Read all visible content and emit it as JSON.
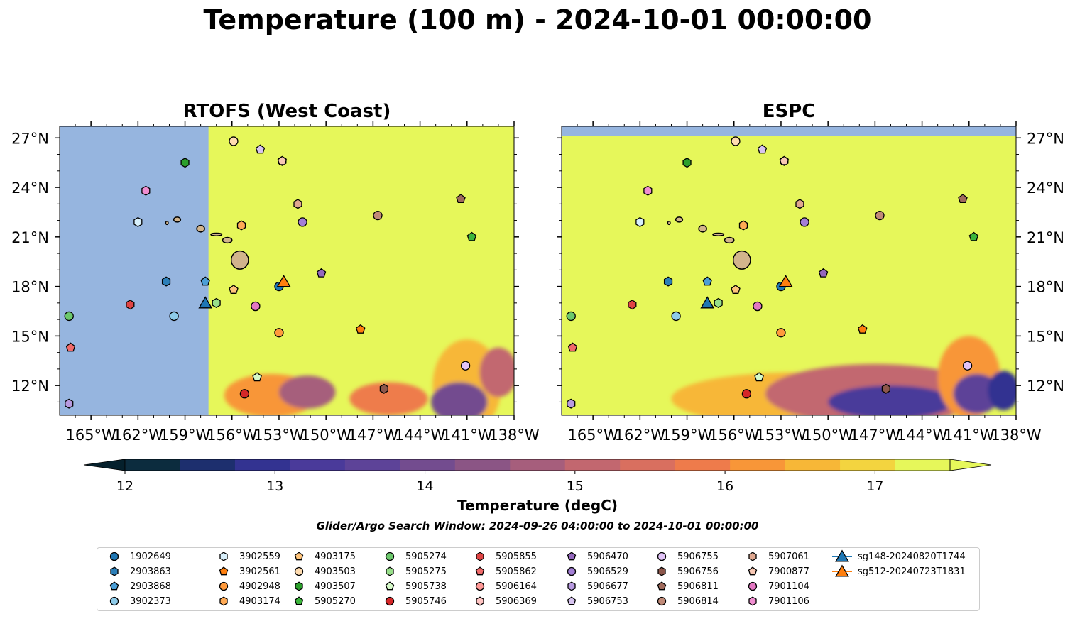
{
  "title": "Temperature (100 m) - 2024-10-01 00:00:00",
  "panels": [
    {
      "title": "RTOFS (West Coast)",
      "model_coverage_west_edge_lon": -157.5
    },
    {
      "title": "ESPC",
      "model_coverage_north_edge_lat": 27.1
    }
  ],
  "map_extent": {
    "lon_min": -167,
    "lon_max": -138,
    "lat_min": 10.2,
    "lat_max": 27.7
  },
  "x_ticks": [
    {
      "lon": -165,
      "label": "165°W"
    },
    {
      "lon": -162,
      "label": "162°W"
    },
    {
      "lon": -159,
      "label": "159°W"
    },
    {
      "lon": -156,
      "label": "156°W"
    },
    {
      "lon": -153,
      "label": "153°W"
    },
    {
      "lon": -150,
      "label": "150°W"
    },
    {
      "lon": -147,
      "label": "147°W"
    },
    {
      "lon": -144,
      "label": "144°W"
    },
    {
      "lon": -141,
      "label": "141°W"
    },
    {
      "lon": -138,
      "label": "138°W"
    }
  ],
  "y_ticks": [
    {
      "lat": 12,
      "label": "12°N"
    },
    {
      "lat": 15,
      "label": "15°N"
    },
    {
      "lat": 18,
      "label": "18°N"
    },
    {
      "lat": 21,
      "label": "21°N"
    },
    {
      "lat": 24,
      "label": "24°N"
    },
    {
      "lat": 27,
      "label": "27°N"
    }
  ],
  "colorbar": {
    "label": "Temperature (degC)",
    "min": 12,
    "max": 17.5,
    "step": 0.5,
    "ticks": [
      "12",
      "13",
      "14",
      "15",
      "16",
      "17"
    ],
    "colors": [
      "#0c2c3e",
      "#1d2f6e",
      "#333391",
      "#4a3a9a",
      "#5d4398",
      "#734c8f",
      "#8b5585",
      "#a65e7c",
      "#c2676f",
      "#d96f5f",
      "#ee7b4b",
      "#f89638",
      "#f7b737",
      "#f3d43f",
      "#e6f75a"
    ],
    "under_color": "#05202c",
    "over_color": "#e6f75a"
  },
  "colors": {
    "no_data": "#96b5df",
    "land": "#d2b48c",
    "warm": "#e6f75a"
  },
  "search_window": "Glider/Argo Search Window: 2024-09-26 04:00:00 to 2024-10-01 00:00:00",
  "legend": [
    {
      "id": "1902649",
      "marker": "circle",
      "color": "#1f77b4"
    },
    {
      "id": "2903863",
      "marker": "hexagon",
      "color": "#2c7fb8"
    },
    {
      "id": "2903868",
      "marker": "pentagon",
      "color": "#4b9ed6"
    },
    {
      "id": "3902373",
      "marker": "circle",
      "color": "#8ecbe9"
    },
    {
      "id": "3902559",
      "marker": "hexagon",
      "color": "#d8f0fc"
    },
    {
      "id": "3902561",
      "marker": "pentagon",
      "color": "#ff7f0e"
    },
    {
      "id": "4902948",
      "marker": "circle",
      "color": "#ff9a3c"
    },
    {
      "id": "4903174",
      "marker": "hexagon",
      "color": "#ffaa55"
    },
    {
      "id": "4903175",
      "marker": "pentagon",
      "color": "#ffc47a"
    },
    {
      "id": "4903503",
      "marker": "circle",
      "color": "#ffdcb0"
    },
    {
      "id": "4903507",
      "marker": "hexagon",
      "color": "#2ca02c"
    },
    {
      "id": "5905270",
      "marker": "pentagon",
      "color": "#3cb63c"
    },
    {
      "id": "5905274",
      "marker": "circle",
      "color": "#6cc86c"
    },
    {
      "id": "5905275",
      "marker": "hexagon",
      "color": "#98df8a"
    },
    {
      "id": "5905738",
      "marker": "pentagon",
      "color": "#d5f9c8"
    },
    {
      "id": "5905746",
      "marker": "circle",
      "color": "#d62728"
    },
    {
      "id": "5905855",
      "marker": "hexagon",
      "color": "#e04444"
    },
    {
      "id": "5905862",
      "marker": "pentagon",
      "color": "#f06a6a"
    },
    {
      "id": "5906164",
      "marker": "circle",
      "color": "#ff9896"
    },
    {
      "id": "5906369",
      "marker": "hexagon",
      "color": "#ffc4c2"
    },
    {
      "id": "5906470",
      "marker": "pentagon",
      "color": "#9467bd"
    },
    {
      "id": "5906529",
      "marker": "circle",
      "color": "#a47fd6"
    },
    {
      "id": "5906677",
      "marker": "hexagon",
      "color": "#b89ae0"
    },
    {
      "id": "5906753",
      "marker": "pentagon",
      "color": "#d7c4f0"
    },
    {
      "id": "5906755",
      "marker": "circle",
      "color": "#e2c4f8"
    },
    {
      "id": "5906756",
      "marker": "hexagon",
      "color": "#8c564b"
    },
    {
      "id": "5906811",
      "marker": "pentagon",
      "color": "#a06a5c"
    },
    {
      "id": "5906814",
      "marker": "circle",
      "color": "#c08a78"
    },
    {
      "id": "5907061",
      "marker": "hexagon",
      "color": "#e0a890"
    },
    {
      "id": "7900877",
      "marker": "pentagon",
      "color": "#f8c8b4"
    },
    {
      "id": "7901104",
      "marker": "circle",
      "color": "#e377c2"
    },
    {
      "id": "7901106",
      "marker": "hexagon",
      "color": "#f08ed0"
    },
    {
      "id": "sg148-20240820T1744",
      "marker": "triangle",
      "color": "#1f77b4"
    },
    {
      "id": "sg512-20240723T1831",
      "marker": "triangle",
      "color": "#ff7f0e"
    }
  ],
  "observations": [
    {
      "id": "1902649",
      "lon": -153.0,
      "lat": 18.0
    },
    {
      "id": "2903863",
      "lon": -160.2,
      "lat": 18.3
    },
    {
      "id": "2903868",
      "lon": -157.7,
      "lat": 18.3
    },
    {
      "id": "3902373",
      "lon": -159.7,
      "lat": 16.2
    },
    {
      "id": "3902559",
      "lon": -162.0,
      "lat": 21.9
    },
    {
      "id": "3902561",
      "lon": -147.8,
      "lat": 15.4
    },
    {
      "id": "4902948",
      "lon": -153.0,
      "lat": 15.2
    },
    {
      "id": "4903174",
      "lon": -155.4,
      "lat": 21.7
    },
    {
      "id": "4903175",
      "lon": -155.9,
      "lat": 17.8
    },
    {
      "id": "4903503",
      "lon": -155.9,
      "lat": 26.8
    },
    {
      "id": "4903507",
      "lon": -159.0,
      "lat": 25.5
    },
    {
      "id": "5905270",
      "lon": -140.7,
      "lat": 21.0
    },
    {
      "id": "5905274",
      "lon": -166.4,
      "lat": 16.2
    },
    {
      "id": "5905275",
      "lon": -157.0,
      "lat": 17.0
    },
    {
      "id": "5905738",
      "lon": -154.4,
      "lat": 12.5
    },
    {
      "id": "5905746",
      "lon": -155.2,
      "lat": 11.5
    },
    {
      "id": "5905855",
      "lon": -162.5,
      "lat": 16.9
    },
    {
      "id": "5905862",
      "lon": -166.3,
      "lat": 14.3
    },
    {
      "id": "5906164",
      "lon": -154.5,
      "lat": 16.8
    },
    {
      "id": "5906369",
      "lon": -152.8,
      "lat": 25.6
    },
    {
      "id": "5906470",
      "lon": -150.3,
      "lat": 18.8
    },
    {
      "id": "5906529",
      "lon": -151.5,
      "lat": 21.9
    },
    {
      "id": "5906677",
      "lon": -166.4,
      "lat": 10.9
    },
    {
      "id": "5906753",
      "lon": -154.2,
      "lat": 26.3
    },
    {
      "id": "5906755",
      "lon": -141.1,
      "lat": 13.2
    },
    {
      "id": "5906756",
      "lon": -146.3,
      "lat": 11.8
    },
    {
      "id": "5906811",
      "lon": -141.4,
      "lat": 23.3
    },
    {
      "id": "5906814",
      "lon": -146.7,
      "lat": 22.3
    },
    {
      "id": "5907061",
      "lon": -151.8,
      "lat": 23.0
    },
    {
      "id": "7900877",
      "lon": -152.8,
      "lat": 25.6
    },
    {
      "id": "7901104",
      "lon": -154.5,
      "lat": 16.8
    },
    {
      "id": "7901106",
      "lon": -161.5,
      "lat": 23.8
    },
    {
      "id": "sg148-20240820T1744",
      "lon": -157.7,
      "lat": 17.0
    },
    {
      "id": "sg512-20240723T1831",
      "lon": -152.7,
      "lat": 18.3
    }
  ],
  "islands": [
    {
      "name": "Hawaii",
      "lon": -155.5,
      "lat": 19.6,
      "rx": 0.55,
      "ry": 0.55
    },
    {
      "name": "Maui",
      "lon": -156.3,
      "lat": 20.8,
      "rx": 0.3,
      "ry": 0.17
    },
    {
      "name": "Molokai",
      "lon": -157.0,
      "lat": 21.15,
      "rx": 0.35,
      "ry": 0.08
    },
    {
      "name": "Oahu",
      "lon": -158.0,
      "lat": 21.5,
      "rx": 0.25,
      "ry": 0.2
    },
    {
      "name": "Kauai",
      "lon": -159.5,
      "lat": 22.05,
      "rx": 0.22,
      "ry": 0.15
    },
    {
      "name": "Niihau",
      "lon": -160.15,
      "lat": 21.85,
      "rx": 0.08,
      "ry": 0.1
    }
  ],
  "cold_bands": {
    "rtofs": [
      {
        "lon": -153.5,
        "lat": 11.4,
        "rx": 3.0,
        "ry": 1.3,
        "level": 3
      },
      {
        "lon": -151.2,
        "lat": 11.6,
        "rx": 1.8,
        "ry": 1.0,
        "level": 7
      },
      {
        "lon": -146.0,
        "lat": 11.2,
        "rx": 2.5,
        "ry": 1.0,
        "level": 4
      },
      {
        "lon": -141.0,
        "lat": 12.0,
        "rx": 2.2,
        "ry": 2.8,
        "level": 2
      },
      {
        "lon": -141.5,
        "lat": 11.0,
        "rx": 1.8,
        "ry": 1.2,
        "level": 9
      },
      {
        "lon": -139.0,
        "lat": 12.8,
        "rx": 1.2,
        "ry": 1.5,
        "level": 6
      }
    ],
    "espc": [
      {
        "lon": -152.0,
        "lat": 11.2,
        "rx": 8.0,
        "ry": 1.6,
        "level": 2
      },
      {
        "lon": -147.0,
        "lat": 11.5,
        "rx": 7.0,
        "ry": 1.8,
        "level": 6
      },
      {
        "lon": -146.0,
        "lat": 11.0,
        "rx": 4.0,
        "ry": 1.0,
        "level": 11
      },
      {
        "lon": -141.0,
        "lat": 12.5,
        "rx": 2.0,
        "ry": 2.5,
        "level": 3
      },
      {
        "lon": -140.5,
        "lat": 11.5,
        "rx": 1.5,
        "ry": 1.2,
        "level": 10
      },
      {
        "lon": -138.8,
        "lat": 11.7,
        "rx": 1.0,
        "ry": 1.2,
        "level": 12
      }
    ]
  }
}
